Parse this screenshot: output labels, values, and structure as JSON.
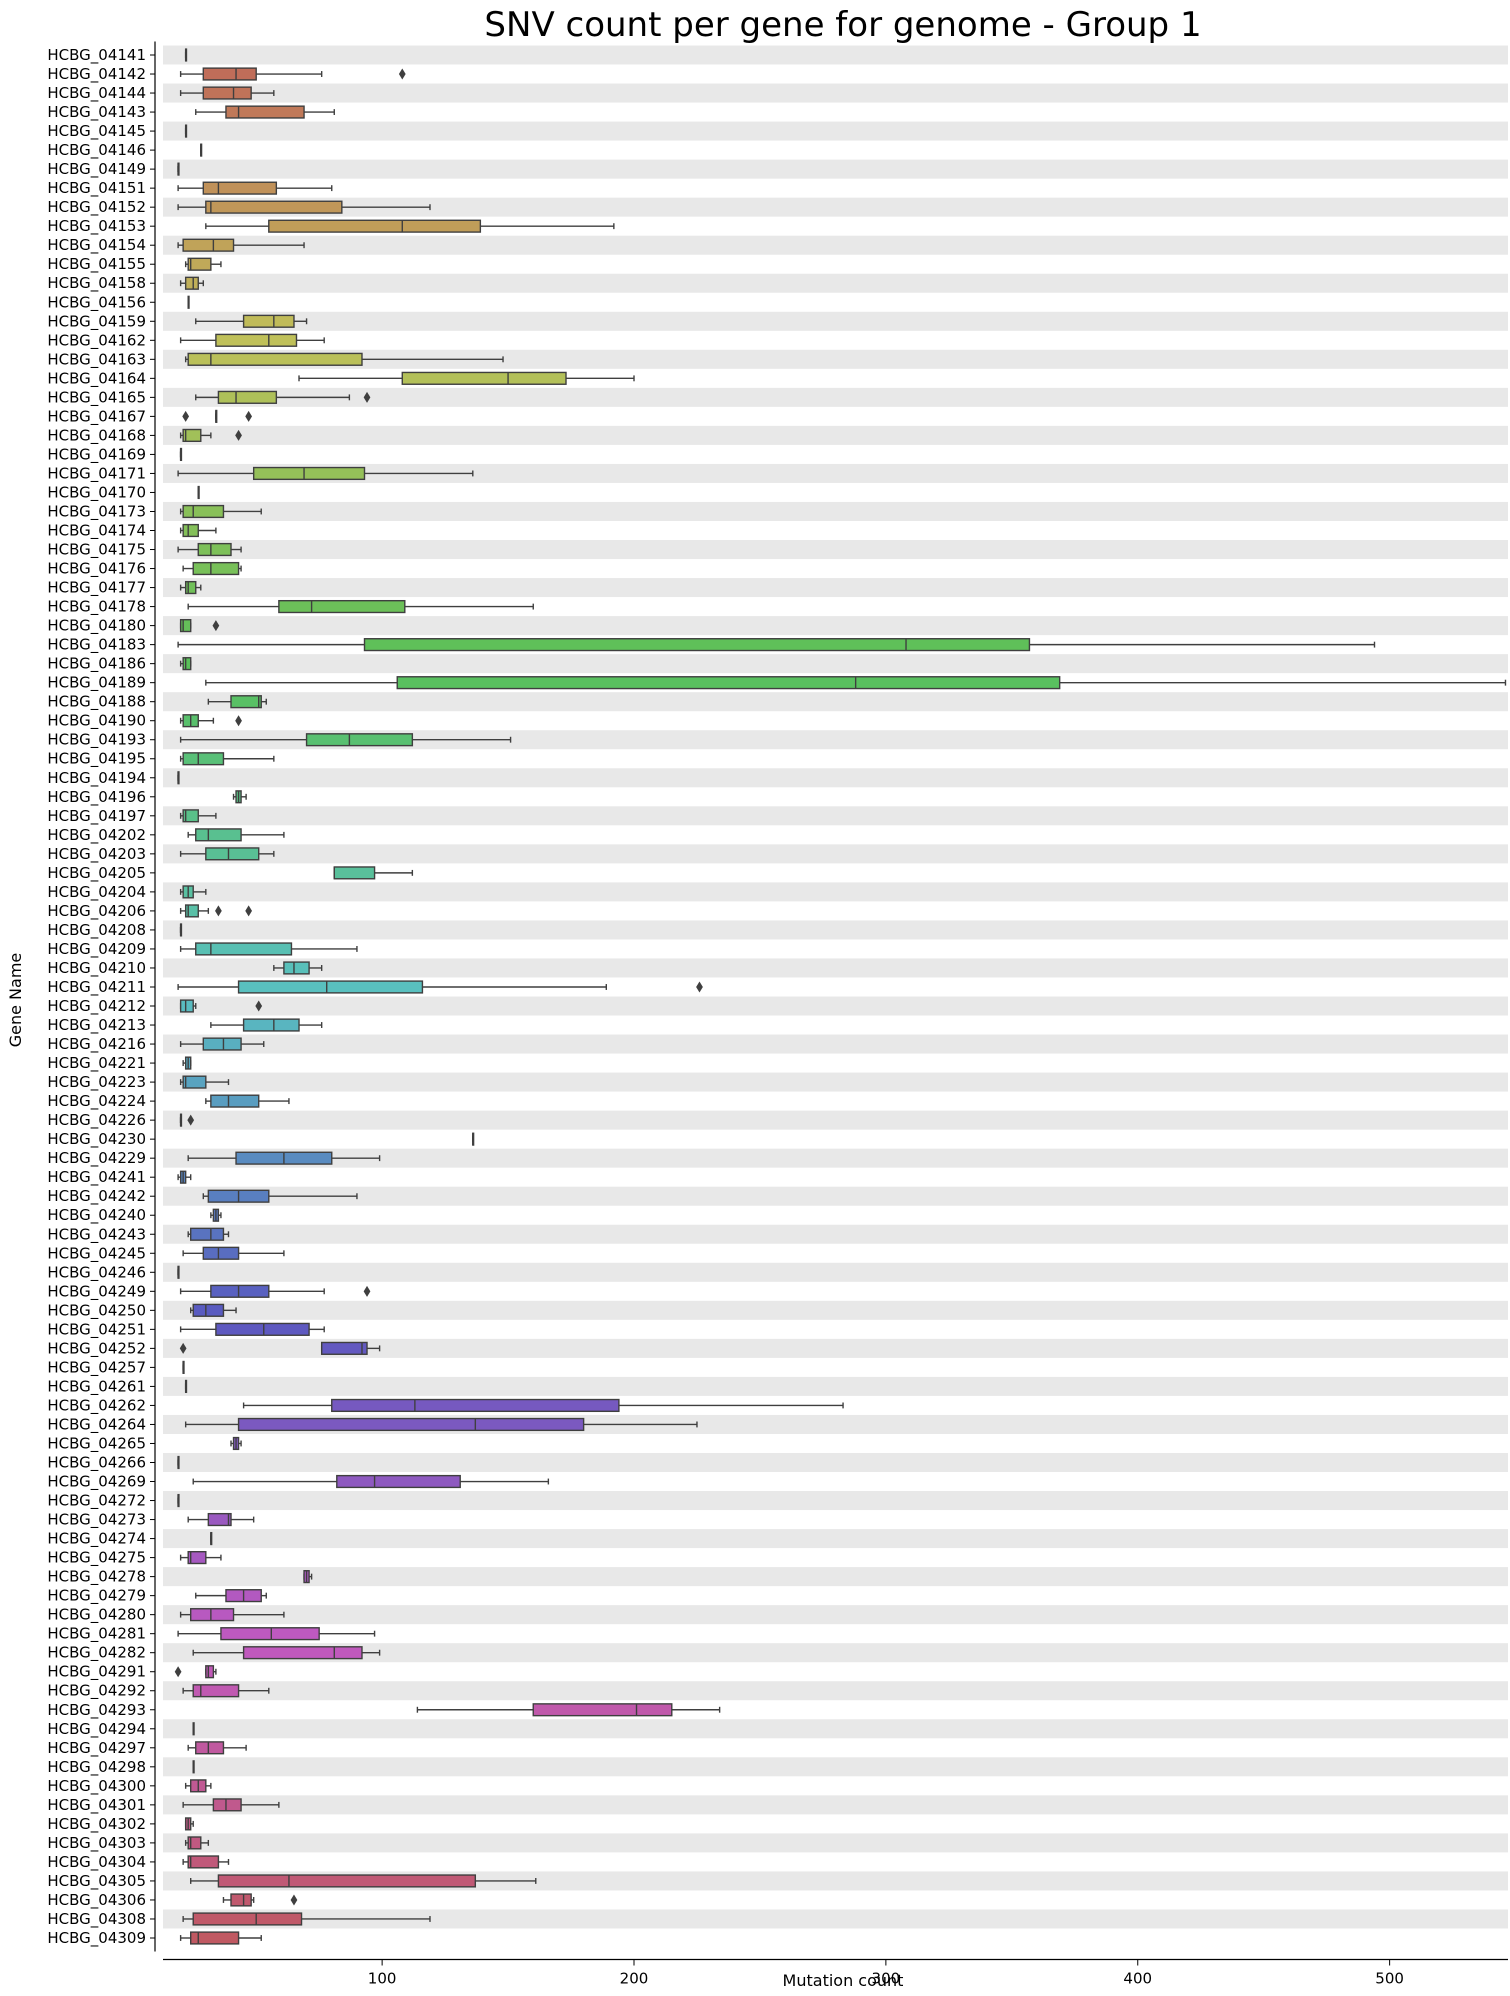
{
  "chart_data": {
    "type": "box",
    "orientation": "horizontal",
    "title": "SNV count per gene for genome - Group 1",
    "xlabel": "Mutation count",
    "ylabel": "Gene Name",
    "xlim": [
      13,
      547
    ],
    "xticks": [
      100,
      200,
      300,
      400,
      500
    ],
    "grid": "alternating row bands",
    "stats_order": [
      "whisker_low",
      "q1",
      "median",
      "q3",
      "whisker_high"
    ],
    "series": [
      {
        "name": "HCBG_04141",
        "stats": [
          22,
          22,
          22,
          22,
          22
        ],
        "outliers": []
      },
      {
        "name": "HCBG_04142",
        "stats": [
          20,
          29,
          42,
          50,
          76
        ],
        "outliers": [
          108
        ]
      },
      {
        "name": "HCBG_04144",
        "stats": [
          20,
          29,
          41,
          48,
          57
        ],
        "outliers": []
      },
      {
        "name": "HCBG_04143",
        "stats": [
          26,
          38,
          43,
          69,
          81
        ],
        "outliers": []
      },
      {
        "name": "HCBG_04145",
        "stats": [
          22,
          22,
          22,
          22,
          22
        ],
        "outliers": []
      },
      {
        "name": "HCBG_04146",
        "stats": [
          28,
          28,
          28,
          28,
          28
        ],
        "outliers": []
      },
      {
        "name": "HCBG_04149",
        "stats": [
          19,
          19,
          19,
          19,
          19
        ],
        "outliers": []
      },
      {
        "name": "HCBG_04151",
        "stats": [
          19,
          29,
          35,
          58,
          80
        ],
        "outliers": []
      },
      {
        "name": "HCBG_04152",
        "stats": [
          19,
          30,
          32,
          84,
          119
        ],
        "outliers": []
      },
      {
        "name": "HCBG_04153",
        "stats": [
          30,
          55,
          108,
          139,
          192
        ],
        "outliers": []
      },
      {
        "name": "HCBG_04154",
        "stats": [
          19,
          21,
          33,
          41,
          69
        ],
        "outliers": []
      },
      {
        "name": "HCBG_04155",
        "stats": [
          22,
          23,
          24,
          32,
          36
        ],
        "outliers": []
      },
      {
        "name": "HCBG_04158",
        "stats": [
          20,
          22,
          25,
          27,
          29
        ],
        "outliers": []
      },
      {
        "name": "HCBG_04156",
        "stats": [
          23,
          23,
          23,
          23,
          23
        ],
        "outliers": []
      },
      {
        "name": "HCBG_04159",
        "stats": [
          26,
          45,
          57,
          65,
          70
        ],
        "outliers": []
      },
      {
        "name": "HCBG_04162",
        "stats": [
          20,
          34,
          55,
          66,
          77
        ],
        "outliers": []
      },
      {
        "name": "HCBG_04163",
        "stats": [
          22,
          23,
          32,
          92,
          148
        ],
        "outliers": []
      },
      {
        "name": "HCBG_04164",
        "stats": [
          67,
          108,
          150,
          173,
          200
        ],
        "outliers": []
      },
      {
        "name": "HCBG_04165",
        "stats": [
          26,
          35,
          42,
          58,
          87
        ],
        "outliers": [
          94
        ]
      },
      {
        "name": "HCBG_04167",
        "stats": [
          34,
          34,
          34,
          34,
          34
        ],
        "outliers": [
          22,
          47
        ]
      },
      {
        "name": "HCBG_04168",
        "stats": [
          20,
          21,
          22,
          28,
          32
        ],
        "outliers": [
          43
        ]
      },
      {
        "name": "HCBG_04169",
        "stats": [
          20,
          20,
          20,
          20,
          20
        ],
        "outliers": []
      },
      {
        "name": "HCBG_04171",
        "stats": [
          19,
          49,
          69,
          93,
          136
        ],
        "outliers": []
      },
      {
        "name": "HCBG_04170",
        "stats": [
          27,
          27,
          27,
          27,
          27
        ],
        "outliers": []
      },
      {
        "name": "HCBG_04173",
        "stats": [
          20,
          21,
          25,
          37,
          52
        ],
        "outliers": []
      },
      {
        "name": "HCBG_04174",
        "stats": [
          20,
          21,
          23,
          27,
          34
        ],
        "outliers": []
      },
      {
        "name": "HCBG_04175",
        "stats": [
          19,
          27,
          32,
          40,
          44
        ],
        "outliers": []
      },
      {
        "name": "HCBG_04176",
        "stats": [
          21,
          25,
          32,
          43,
          44
        ],
        "outliers": []
      },
      {
        "name": "HCBG_04177",
        "stats": [
          20,
          22,
          23,
          26,
          28
        ],
        "outliers": []
      },
      {
        "name": "HCBG_04178",
        "stats": [
          23,
          59,
          72,
          109,
          160
        ],
        "outliers": []
      },
      {
        "name": "HCBG_04180",
        "stats": [
          20,
          20,
          21,
          24,
          24
        ],
        "outliers": [
          34
        ]
      },
      {
        "name": "HCBG_04183",
        "stats": [
          19,
          93,
          308,
          357,
          494
        ],
        "outliers": []
      },
      {
        "name": "HCBG_04186",
        "stats": [
          20,
          21,
          22,
          24,
          24
        ],
        "outliers": []
      },
      {
        "name": "HCBG_04189",
        "stats": [
          30,
          106,
          288,
          369,
          546
        ],
        "outliers": []
      },
      {
        "name": "HCBG_04188",
        "stats": [
          31,
          40,
          51,
          52,
          54
        ],
        "outliers": []
      },
      {
        "name": "HCBG_04190",
        "stats": [
          20,
          21,
          24,
          27,
          33
        ],
        "outliers": [
          43
        ]
      },
      {
        "name": "HCBG_04193",
        "stats": [
          20,
          70,
          87,
          112,
          151
        ],
        "outliers": []
      },
      {
        "name": "HCBG_04195",
        "stats": [
          20,
          21,
          27,
          37,
          57
        ],
        "outliers": []
      },
      {
        "name": "HCBG_04194",
        "stats": [
          19,
          19,
          19,
          19,
          19
        ],
        "outliers": []
      },
      {
        "name": "HCBG_04196",
        "stats": [
          41,
          42,
          43,
          44,
          46
        ],
        "outliers": []
      },
      {
        "name": "HCBG_04197",
        "stats": [
          20,
          21,
          22,
          27,
          34
        ],
        "outliers": []
      },
      {
        "name": "HCBG_04202",
        "stats": [
          23,
          26,
          31,
          44,
          61
        ],
        "outliers": []
      },
      {
        "name": "HCBG_04203",
        "stats": [
          20,
          30,
          39,
          51,
          57
        ],
        "outliers": []
      },
      {
        "name": "HCBG_04205",
        "stats": [
          81,
          81,
          81,
          97,
          112
        ],
        "outliers": []
      },
      {
        "name": "HCBG_04204",
        "stats": [
          20,
          21,
          23,
          25,
          30
        ],
        "outliers": []
      },
      {
        "name": "HCBG_04206",
        "stats": [
          20,
          22,
          23,
          27,
          31
        ],
        "outliers": [
          35,
          47
        ]
      },
      {
        "name": "HCBG_04208",
        "stats": [
          20,
          20,
          20,
          20,
          20
        ],
        "outliers": []
      },
      {
        "name": "HCBG_04209",
        "stats": [
          20,
          26,
          32,
          64,
          90
        ],
        "outliers": []
      },
      {
        "name": "HCBG_04210",
        "stats": [
          57,
          61,
          65,
          71,
          76
        ],
        "outliers": []
      },
      {
        "name": "HCBG_04211",
        "stats": [
          19,
          43,
          78,
          116,
          189
        ],
        "outliers": [
          226
        ]
      },
      {
        "name": "HCBG_04212",
        "stats": [
          20,
          20,
          22,
          25,
          26
        ],
        "outliers": [
          51
        ]
      },
      {
        "name": "HCBG_04213",
        "stats": [
          32,
          45,
          57,
          67,
          76
        ],
        "outliers": []
      },
      {
        "name": "HCBG_04216",
        "stats": [
          20,
          29,
          37,
          44,
          53
        ],
        "outliers": []
      },
      {
        "name": "HCBG_04221",
        "stats": [
          21,
          22,
          23,
          24,
          24
        ],
        "outliers": []
      },
      {
        "name": "HCBG_04223",
        "stats": [
          20,
          21,
          22,
          30,
          39
        ],
        "outliers": []
      },
      {
        "name": "HCBG_04224",
        "stats": [
          30,
          32,
          39,
          51,
          63
        ],
        "outliers": []
      },
      {
        "name": "HCBG_04226",
        "stats": [
          20,
          20,
          20,
          20,
          20
        ],
        "outliers": [
          24
        ]
      },
      {
        "name": "HCBG_04230",
        "stats": [
          136,
          136,
          136,
          136,
          136
        ],
        "outliers": []
      },
      {
        "name": "HCBG_04229",
        "stats": [
          23,
          42,
          61,
          80,
          99
        ],
        "outliers": []
      },
      {
        "name": "HCBG_04241",
        "stats": [
          19,
          20,
          21,
          22,
          24
        ],
        "outliers": []
      },
      {
        "name": "HCBG_04242",
        "stats": [
          29,
          31,
          43,
          55,
          90
        ],
        "outliers": []
      },
      {
        "name": "HCBG_04240",
        "stats": [
          32,
          33,
          34,
          35,
          36
        ],
        "outliers": []
      },
      {
        "name": "HCBG_04243",
        "stats": [
          23,
          24,
          32,
          37,
          39
        ],
        "outliers": []
      },
      {
        "name": "HCBG_04245",
        "stats": [
          21,
          29,
          35,
          43,
          61
        ],
        "outliers": []
      },
      {
        "name": "HCBG_04246",
        "stats": [
          19,
          19,
          19,
          19,
          19
        ],
        "outliers": []
      },
      {
        "name": "HCBG_04249",
        "stats": [
          20,
          32,
          43,
          55,
          77
        ],
        "outliers": [
          94
        ]
      },
      {
        "name": "HCBG_04250",
        "stats": [
          24,
          25,
          30,
          37,
          42
        ],
        "outliers": []
      },
      {
        "name": "HCBG_04251",
        "stats": [
          20,
          34,
          53,
          71,
          77
        ],
        "outliers": []
      },
      {
        "name": "HCBG_04252",
        "stats": [
          76,
          76,
          92,
          94,
          99
        ],
        "outliers": [
          21
        ]
      },
      {
        "name": "HCBG_04257",
        "stats": [
          21,
          21,
          21,
          21,
          21
        ],
        "outliers": []
      },
      {
        "name": "HCBG_04261",
        "stats": [
          22,
          22,
          22,
          22,
          22
        ],
        "outliers": []
      },
      {
        "name": "HCBG_04262",
        "stats": [
          45,
          80,
          113,
          194,
          283
        ],
        "outliers": []
      },
      {
        "name": "HCBG_04264",
        "stats": [
          22,
          43,
          137,
          180,
          225
        ],
        "outliers": []
      },
      {
        "name": "HCBG_04265",
        "stats": [
          40,
          41,
          42,
          43,
          44
        ],
        "outliers": []
      },
      {
        "name": "HCBG_04266",
        "stats": [
          19,
          19,
          19,
          19,
          19
        ],
        "outliers": []
      },
      {
        "name": "HCBG_04269",
        "stats": [
          25,
          82,
          97,
          131,
          166
        ],
        "outliers": []
      },
      {
        "name": "HCBG_04272",
        "stats": [
          19,
          19,
          19,
          19,
          19
        ],
        "outliers": []
      },
      {
        "name": "HCBG_04273",
        "stats": [
          23,
          31,
          39,
          40,
          49
        ],
        "outliers": []
      },
      {
        "name": "HCBG_04274",
        "stats": [
          32,
          32,
          32,
          32,
          32
        ],
        "outliers": []
      },
      {
        "name": "HCBG_04275",
        "stats": [
          20,
          23,
          24,
          30,
          36
        ],
        "outliers": []
      },
      {
        "name": "HCBG_04278",
        "stats": [
          69,
          69,
          70,
          71,
          72
        ],
        "outliers": []
      },
      {
        "name": "HCBG_04279",
        "stats": [
          26,
          38,
          45,
          52,
          54
        ],
        "outliers": []
      },
      {
        "name": "HCBG_04280",
        "stats": [
          20,
          24,
          32,
          41,
          61
        ],
        "outliers": []
      },
      {
        "name": "HCBG_04281",
        "stats": [
          19,
          36,
          56,
          75,
          97
        ],
        "outliers": []
      },
      {
        "name": "HCBG_04282",
        "stats": [
          25,
          45,
          81,
          92,
          99
        ],
        "outliers": []
      },
      {
        "name": "HCBG_04291",
        "stats": [
          30,
          30,
          31,
          33,
          34
        ],
        "outliers": [
          19
        ]
      },
      {
        "name": "HCBG_04292",
        "stats": [
          21,
          25,
          28,
          43,
          55
        ],
        "outliers": []
      },
      {
        "name": "HCBG_04293",
        "stats": [
          114,
          160,
          201,
          215,
          234
        ],
        "outliers": []
      },
      {
        "name": "HCBG_04294",
        "stats": [
          25,
          25,
          25,
          25,
          25
        ],
        "outliers": []
      },
      {
        "name": "HCBG_04297",
        "stats": [
          23,
          26,
          31,
          37,
          46
        ],
        "outliers": []
      },
      {
        "name": "HCBG_04298",
        "stats": [
          25,
          25,
          25,
          25,
          25
        ],
        "outliers": []
      },
      {
        "name": "HCBG_04300",
        "stats": [
          22,
          24,
          27,
          30,
          32
        ],
        "outliers": []
      },
      {
        "name": "HCBG_04301",
        "stats": [
          21,
          33,
          38,
          44,
          59
        ],
        "outliers": []
      },
      {
        "name": "HCBG_04302",
        "stats": [
          22,
          22,
          23,
          24,
          25
        ],
        "outliers": []
      },
      {
        "name": "HCBG_04303",
        "stats": [
          22,
          23,
          24,
          28,
          31
        ],
        "outliers": []
      },
      {
        "name": "HCBG_04304",
        "stats": [
          21,
          23,
          24,
          35,
          39
        ],
        "outliers": []
      },
      {
        "name": "HCBG_04305",
        "stats": [
          24,
          35,
          63,
          137,
          161
        ],
        "outliers": []
      },
      {
        "name": "HCBG_04306",
        "stats": [
          37,
          40,
          45,
          48,
          49
        ],
        "outliers": [
          65
        ]
      },
      {
        "name": "HCBG_04308",
        "stats": [
          21,
          25,
          50,
          68,
          119
        ],
        "outliers": []
      },
      {
        "name": "HCBG_04309",
        "stats": [
          20,
          24,
          27,
          43,
          52
        ],
        "outliers": []
      }
    ]
  }
}
